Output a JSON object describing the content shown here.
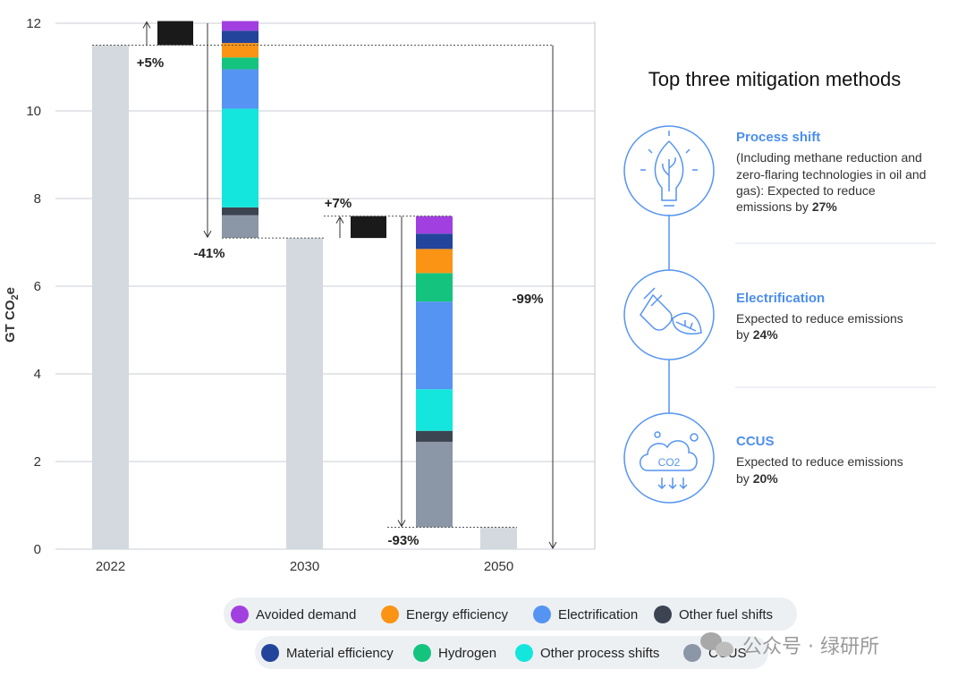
{
  "chart_data": {
    "type": "bar",
    "subtype": "waterfall",
    "ylabel": "GT CO2e",
    "ylim": [
      0,
      12
    ],
    "yticks": [
      0,
      2,
      4,
      6,
      8,
      10,
      12
    ],
    "categories": [
      "2022",
      "2030",
      "2050"
    ],
    "baseline_values": {
      "2022": 11.5,
      "2030": 7.1,
      "2050": 0.5
    },
    "growth": [
      {
        "label": "+5%",
        "from": 11.5,
        "to": 12.05
      },
      {
        "label": "+7%",
        "from": 7.1,
        "to": 7.6
      }
    ],
    "mitigation_2030": {
      "segments_bottom_to_top": [
        {
          "name": "CCUS",
          "from": 7.1,
          "to": 7.62
        },
        {
          "name": "Other fuel shifts",
          "from": 7.62,
          "to": 7.8
        },
        {
          "name": "Other process shifts",
          "from": 7.8,
          "to": 10.05
        },
        {
          "name": "Electrification",
          "from": 10.05,
          "to": 10.95
        },
        {
          "name": "Hydrogen",
          "from": 10.95,
          "to": 11.22
        },
        {
          "name": "Energy efficiency",
          "from": 11.22,
          "to": 11.55
        },
        {
          "name": "Material efficiency",
          "from": 11.55,
          "to": 11.83
        },
        {
          "name": "Avoided demand",
          "from": 11.83,
          "to": 12.05
        }
      ]
    },
    "mitigation_2050": {
      "segments_bottom_to_top": [
        {
          "name": "CCUS",
          "from": 0.5,
          "to": 2.45
        },
        {
          "name": "Other fuel shifts",
          "from": 2.45,
          "to": 2.7
        },
        {
          "name": "Other process shifts",
          "from": 2.7,
          "to": 3.65
        },
        {
          "name": "Electrification",
          "from": 3.65,
          "to": 5.65
        },
        {
          "name": "Hydrogen",
          "from": 5.65,
          "to": 6.3
        },
        {
          "name": "Energy efficiency",
          "from": 6.3,
          "to": 6.85
        },
        {
          "name": "Material efficiency",
          "from": 6.85,
          "to": 7.2
        },
        {
          "name": "Avoided demand",
          "from": 7.2,
          "to": 7.6
        }
      ]
    },
    "reductions": [
      {
        "label": "-41%",
        "from": 12.05,
        "to": 7.1
      },
      {
        "label": "-93%",
        "from": 7.6,
        "to": 0.5
      },
      {
        "label": "-99%",
        "from": 11.5,
        "to": 0.0
      }
    ],
    "legend": [
      {
        "name": "Avoided demand",
        "color": "#a23fe0"
      },
      {
        "name": "Energy efficiency",
        "color": "#fb9414"
      },
      {
        "name": "Electrification",
        "color": "#5594f2"
      },
      {
        "name": "Other fuel shifts",
        "color": "#3d4451"
      },
      {
        "name": "Material efficiency",
        "color": "#22459b"
      },
      {
        "name": "Hydrogen",
        "color": "#14c47e"
      },
      {
        "name": "Other process shifts",
        "color": "#14e6de"
      },
      {
        "name": "CCUS",
        "color": "#8b96a6"
      }
    ],
    "colors": {
      "baseline": "#d3d9de",
      "growth": "#1a1a1a",
      "grid": "#c8cdd6"
    }
  },
  "panel": {
    "title": "Top three mitigation methods",
    "methods": [
      {
        "icon": "lightbulb-leaf-icon",
        "name": "Process shift",
        "lines": [
          "(Including methane reduction and",
          "zero-flaring technologies in oil and",
          "gas): Expected to reduce"
        ],
        "last_prefix": "emissions by ",
        "pct": "27%"
      },
      {
        "icon": "plug-leaf-icon",
        "name": "Electrification",
        "lines": [
          "Expected to reduce emissions"
        ],
        "last_prefix": "by ",
        "pct": "24%"
      },
      {
        "icon": "co2-cloud-icon",
        "name": "CCUS",
        "lines": [
          "Expected to reduce emissions"
        ],
        "last_prefix": "by ",
        "pct": "20%"
      }
    ],
    "icon_co2_text": "CO2"
  },
  "watermark": {
    "text": "公众号 · 绿研所"
  }
}
